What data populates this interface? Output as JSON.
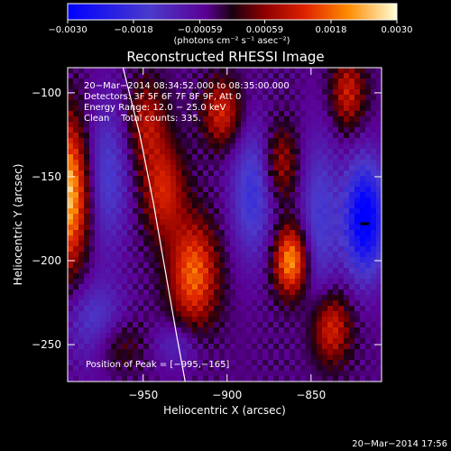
{
  "chart_data": {
    "type": "heatmap",
    "title": "Reconstructed RHESSI Image",
    "xlabel": "Heliocentric X (arcsec)",
    "ylabel": "Heliocentric Y (arcsec)",
    "xlim": [
      -995,
      -808
    ],
    "ylim": [
      -272,
      -85
    ],
    "x_ticks": [
      -950,
      -900,
      -850
    ],
    "y_ticks": [
      -100,
      -150,
      -200,
      -250
    ],
    "x_tick_labels": [
      "−950",
      "−900",
      "−850"
    ],
    "y_tick_labels": [
      "−100",
      "−150",
      "−200",
      "−250"
    ],
    "colorbar": {
      "range": [
        -0.003,
        0.003
      ],
      "ticks": [
        -0.003,
        -0.0018,
        -0.00059,
        0.00059,
        0.0018,
        0.003
      ],
      "tick_labels": [
        "−0.0030",
        "−0.0018",
        "−0.00059",
        "0.00059",
        "0.0018",
        "0.0030"
      ],
      "units_label": "(photons cm⁻² s⁻¹ asec⁻²)"
    },
    "info_lines": [
      "20−Mar−2014 08:34:52.000 to 08:35:00.000",
      "Detectors: 3F 5F 6F 7F 8F 9F, Att 0",
      "Energy Range: 12.0 − 25.0 keV",
      "Clean    Total counts: 335."
    ],
    "peak_label": "Position of Peak = [−995,−165]",
    "peak": [
      -995,
      -165
    ],
    "limb_curve": [
      [
        -962,
        -85
      ],
      [
        -952,
        -125
      ],
      [
        -944,
        -165
      ],
      [
        -937,
        -205
      ],
      [
        -930,
        -245
      ],
      [
        -925,
        -272
      ]
    ],
    "blobs": [
      {
        "x": -995,
        "y": -160,
        "sx": 9,
        "sy": 30,
        "amp": 0.003
      },
      {
        "x": -948,
        "y": -118,
        "sx": 8,
        "sy": 18,
        "amp": 0.0013
      },
      {
        "x": -938,
        "y": -158,
        "sx": 9,
        "sy": 20,
        "amp": 0.0016
      },
      {
        "x": -920,
        "y": -208,
        "sx": 10,
        "sy": 22,
        "amp": 0.0022
      },
      {
        "x": -903,
        "y": -112,
        "sx": 8,
        "sy": 14,
        "amp": 0.0016
      },
      {
        "x": -868,
        "y": -142,
        "sx": 7,
        "sy": 16,
        "amp": 0.0012
      },
      {
        "x": -862,
        "y": -200,
        "sx": 7,
        "sy": 14,
        "amp": 0.0026
      },
      {
        "x": -828,
        "y": -100,
        "sx": 7,
        "sy": 15,
        "amp": 0.0015
      },
      {
        "x": -838,
        "y": -240,
        "sx": 8,
        "sy": 15,
        "amp": 0.0017
      },
      {
        "x": -968,
        "y": -250,
        "sx": 12,
        "sy": 12,
        "amp": 0.001
      },
      {
        "x": -972,
        "y": -150,
        "sx": 10,
        "sy": 32,
        "amp": -0.0012
      },
      {
        "x": -978,
        "y": -240,
        "sx": 12,
        "sy": 18,
        "amp": -0.0013
      },
      {
        "x": -885,
        "y": -160,
        "sx": 9,
        "sy": 28,
        "amp": -0.0014
      },
      {
        "x": -845,
        "y": -175,
        "sx": 8,
        "sy": 35,
        "amp": -0.0012
      },
      {
        "x": -818,
        "y": -175,
        "sx": 9,
        "sy": 24,
        "amp": -0.0028
      },
      {
        "x": -930,
        "y": -250,
        "sx": 10,
        "sy": 10,
        "amp": -0.0008
      }
    ]
  },
  "footer": {
    "timestamp": "20−Mar−2014 17:56"
  },
  "colors": {
    "background": "#000000",
    "text": "#ffffff",
    "peak_marker": "#000000"
  }
}
